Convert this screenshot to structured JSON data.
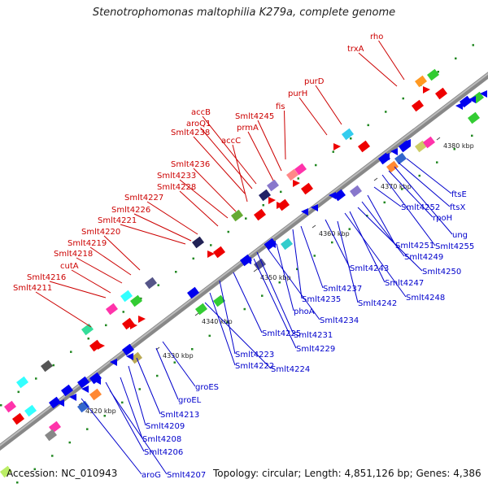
{
  "title": "Stenotrophomonas maltophilia K279a, complete genome",
  "footer": {
    "accession": "Accession: NC_010943",
    "summary": "Topology: circular; Length: 4,851,126 bp; Genes: 4,386"
  },
  "colors": {
    "forward_label": "#cc0000",
    "reverse_label": "#0000cc",
    "backbone": "#777777",
    "forward_gene": "#ee0000",
    "reverse_gene": "#0000ee",
    "tick": "#228822"
  },
  "ticks": [
    "4320 kbp",
    "4330 kbp",
    "4340 kbp",
    "4350 kbp",
    "4360 kbp",
    "4370 kbp",
    "4380 kbp"
  ],
  "forward_labels": [
    "rho",
    "trxA",
    "purD",
    "purH",
    "fis",
    "Smlt4245",
    "prmA",
    "accB",
    "aroQ1",
    "Smlt4238",
    "accC",
    "Smlt4236",
    "Smlt4233",
    "Smlt4228",
    "Smlt4227",
    "Smlt4226",
    "Smlt4221",
    "Smlt4220",
    "Smlt4219",
    "Smlt4218",
    "cutA",
    "Smlt4216",
    "Smlt4211"
  ],
  "reverse_labels": [
    "ftsE",
    "ftsX",
    "rpoH",
    "ung",
    "Smlt4255",
    "Smlt4252",
    "Smlt4251",
    "Smlt4249",
    "Smlt4250",
    "Smlt4247",
    "Smlt4248",
    "Smlt4243",
    "Smlt4242",
    "Smlt4237",
    "Smlt4235",
    "phoA",
    "Smlt4234",
    "Smlt4231",
    "Smlt4229",
    "Smlt4225",
    "Smlt4223",
    "Smlt4222",
    "Smlt4224",
    "groES",
    "groEL",
    "Smlt4213",
    "Smlt4209",
    "Smlt4208",
    "Smlt4206",
    "aroG",
    "Smlt4207"
  ]
}
